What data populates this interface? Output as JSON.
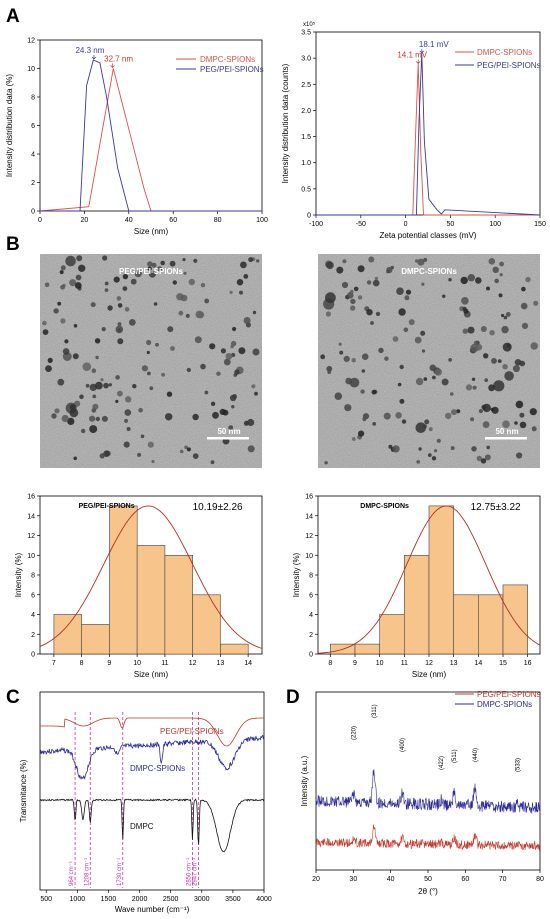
{
  "panels": {
    "A": "A",
    "B": "B",
    "C": "C",
    "D": "D"
  },
  "chart_data": [
    {
      "id": "dls",
      "type": "line",
      "xlabel": "Size (nm)",
      "ylabel": "Intensity distribution data (%)",
      "xlim": [
        0,
        100
      ],
      "ylim": [
        0,
        12
      ],
      "xticks": [
        0,
        20,
        40,
        60,
        80,
        100
      ],
      "yticks": [
        0,
        2,
        4,
        6,
        8,
        10,
        12
      ],
      "series": [
        {
          "name": "DMPC-SPIONs",
          "color": "#d9534a",
          "x": [
            0,
            22,
            33,
            47,
            50,
            100
          ],
          "y": [
            0,
            0.3,
            10.0,
            1.5,
            0,
            0
          ]
        },
        {
          "name": "PEG/PEI-SPIONs",
          "color": "#3a3a9a",
          "x": [
            0,
            18,
            21,
            24,
            27,
            30,
            35,
            40,
            100
          ],
          "y": [
            0,
            0,
            8.8,
            10.6,
            10.4,
            8.0,
            3.0,
            0,
            0
          ]
        }
      ],
      "annotations": [
        {
          "text": "24.3 nm",
          "x": 24.3,
          "y": 10.6,
          "color": "#3a3a9a"
        },
        {
          "text": "32.7 nm",
          "x": 32.7,
          "y": 10.0,
          "color": "#c0392b"
        }
      ],
      "legend": "top-right"
    },
    {
      "id": "zeta",
      "type": "line",
      "xlabel": "Zeta potential classes (mV)",
      "ylabel": "Intensity distribution data (counts)",
      "exponent": "x10⁵",
      "xlim": [
        -100,
        150
      ],
      "ylim": [
        0,
        3.5
      ],
      "xticks": [
        -100,
        -50,
        0,
        50,
        100,
        150
      ],
      "yticks": [
        0,
        0.5,
        1,
        1.5,
        2,
        2.5,
        3,
        3.5
      ],
      "ytick_labels": [
        "0",
        "0.5",
        "1.0",
        "1.5",
        "2.0",
        "2.5",
        "3.0",
        "3.5"
      ],
      "series": [
        {
          "name": "DMPC-SPIONs",
          "color": "#d9534a",
          "x": [
            -100,
            8,
            11,
            14.1,
            17,
            20,
            150
          ],
          "y": [
            0,
            0,
            1.5,
            2.9,
            1.2,
            0,
            0
          ]
        },
        {
          "name": "PEG/PEI-SPIONs",
          "color": "#3a3a9a",
          "x": [
            -100,
            12,
            15,
            18.1,
            21,
            26,
            35,
            40,
            44,
            150
          ],
          "y": [
            0,
            0,
            1.8,
            3.1,
            1.4,
            0.3,
            0.1,
            0.02,
            0.1,
            0
          ]
        }
      ],
      "annotations": [
        {
          "text": "18.1 mV",
          "x": 18.1,
          "y": 3.1,
          "color": "#3a3a9a"
        },
        {
          "text": "14.1 mV",
          "x": 14.1,
          "y": 2.9,
          "color": "#c0392b"
        }
      ],
      "legend": "top-right"
    },
    {
      "id": "hist_peg",
      "type": "bar",
      "title": "PEG/PEI-SPIONs",
      "stat": "10.19±2.26",
      "xlabel": "Size (nm)",
      "ylabel": "Intensity (%)",
      "xlim": [
        6.5,
        14.5
      ],
      "ylim": [
        0,
        16
      ],
      "xticks": [
        7,
        8,
        9,
        10,
        11,
        12,
        13,
        14
      ],
      "yticks": [
        0,
        2,
        4,
        6,
        8,
        10,
        12,
        14,
        16
      ],
      "bin_edges": [
        7,
        8,
        9,
        10,
        11,
        12,
        13,
        14
      ],
      "values": [
        4,
        3,
        15,
        11,
        10,
        6,
        1
      ],
      "fit_mean": 10.4,
      "fit_sd": 1.6,
      "fit_peak": 15
    },
    {
      "id": "hist_dmpc",
      "type": "bar",
      "title": "DMPC-SPIONs",
      "stat": "12.75±3.22",
      "xlabel": "Size (nm)",
      "ylabel": "Intensity (%)",
      "xlim": [
        7.5,
        16.5
      ],
      "ylim": [
        0,
        16
      ],
      "xticks": [
        8,
        9,
        10,
        11,
        12,
        13,
        14,
        15,
        16
      ],
      "yticks": [
        0,
        2,
        4,
        6,
        8,
        10,
        12,
        14,
        16
      ],
      "bin_edges": [
        8,
        9,
        10,
        11,
        12,
        13,
        14,
        15,
        16
      ],
      "values": [
        1,
        1,
        4,
        10,
        15,
        6,
        6,
        7
      ],
      "fit_mean": 12.7,
      "fit_sd": 1.6,
      "fit_peak": 15
    },
    {
      "id": "ftir",
      "type": "line",
      "xlabel": "Wave number (cm⁻¹)",
      "ylabel": "Transmitance (%)",
      "xlim": [
        400,
        4000
      ],
      "xticks": [
        500,
        1000,
        1500,
        2000,
        2500,
        3000,
        3500,
        4000
      ],
      "series": [
        {
          "name": "PEG/PEI-SPIONs",
          "color": "#c0392b"
        },
        {
          "name": "DMPC-SPIONs",
          "color": "#2a2a9a"
        },
        {
          "name": "DMPC",
          "color": "#111111"
        }
      ],
      "peak_lines": [
        {
          "x": 964,
          "label": "964 cm⁻¹"
        },
        {
          "x": 1208,
          "label": "1208 cm⁻¹"
        },
        {
          "x": 1730,
          "label": "1730 cm⁻¹"
        },
        {
          "x": 2850,
          "label": "2850 cm⁻¹"
        },
        {
          "x": 2947,
          "label": "2947 cm⁻¹"
        }
      ]
    },
    {
      "id": "xrd",
      "type": "line",
      "xlabel": "2θ (°)",
      "ylabel": "Intensity (a.u.)",
      "xlim": [
        20,
        80
      ],
      "xticks": [
        20,
        30,
        40,
        50,
        60,
        70,
        80
      ],
      "series": [
        {
          "name": "PEG/PEI-SPIONs",
          "color": "#c0392b"
        },
        {
          "name": "DMPC-SPIONs",
          "color": "#2a2a9a"
        }
      ],
      "peaks": [
        {
          "x": 30.1,
          "label": "(220)"
        },
        {
          "x": 35.5,
          "label": "(311)"
        },
        {
          "x": 43.1,
          "label": "(400)"
        },
        {
          "x": 53.5,
          "label": "(422)"
        },
        {
          "x": 57.0,
          "label": "(511)"
        },
        {
          "x": 62.6,
          "label": "(440)"
        },
        {
          "x": 74.0,
          "label": "(533)"
        }
      ],
      "legend": "top-right"
    }
  ],
  "tem": [
    {
      "label": "PEG/PEI-SPIONs",
      "scale": "50 nm"
    },
    {
      "label": "DMPC-SPIONs",
      "scale": "50 nm"
    }
  ]
}
